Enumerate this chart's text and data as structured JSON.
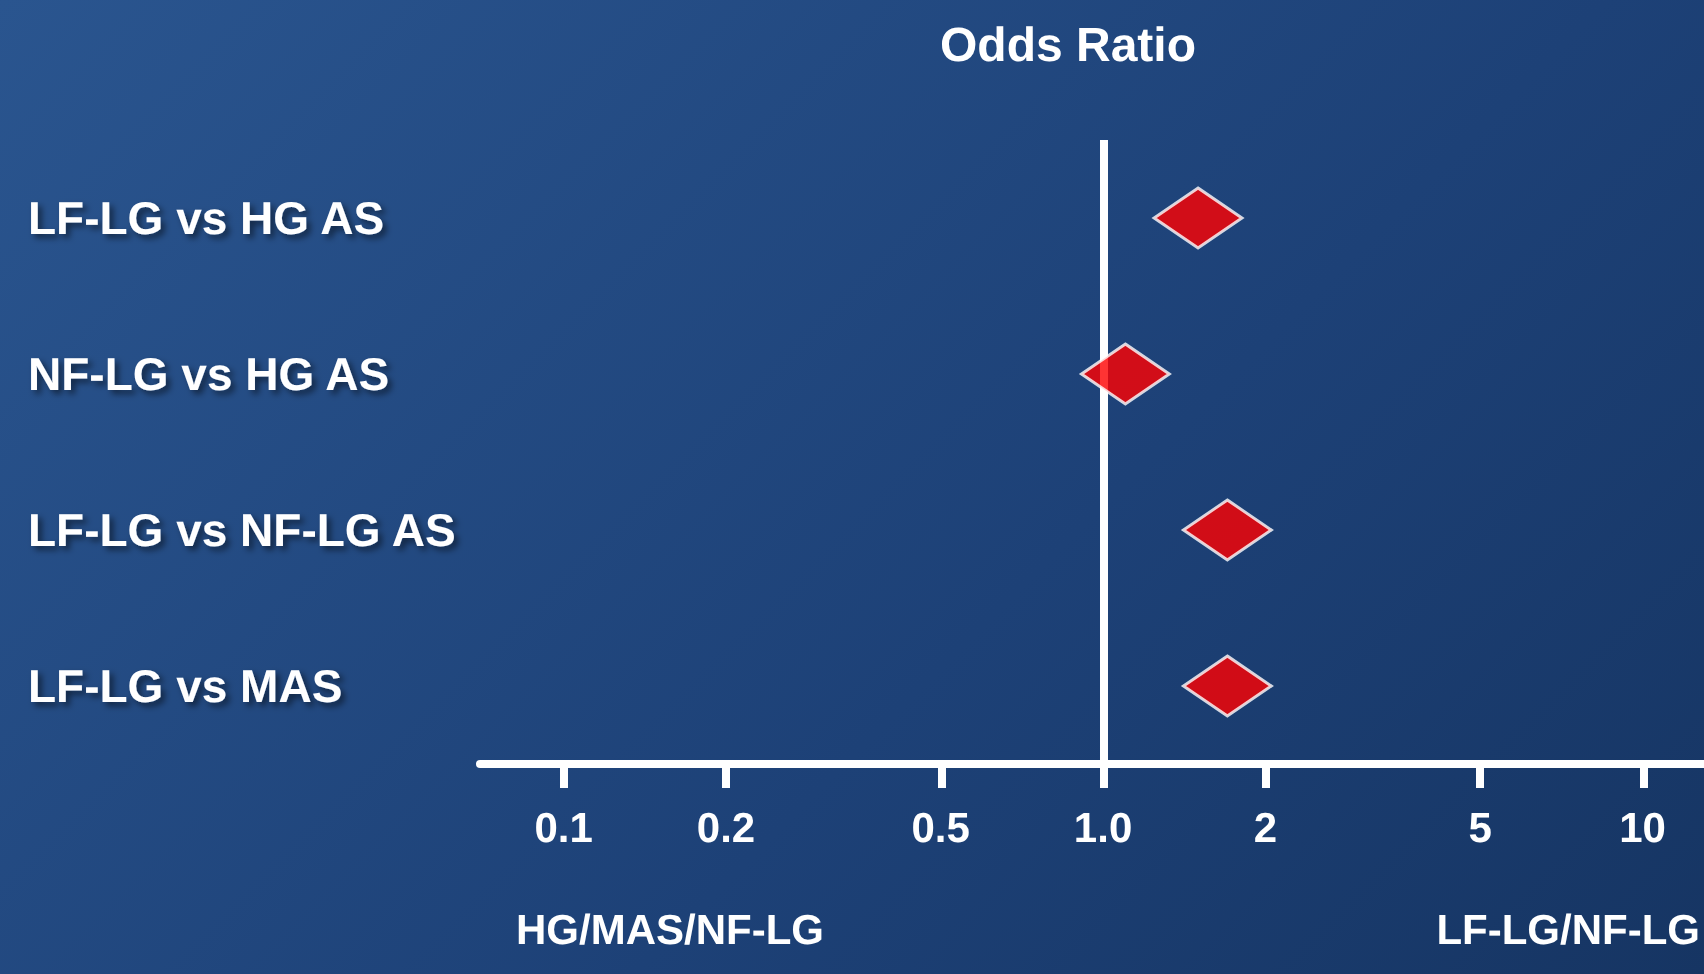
{
  "chart_data": {
    "type": "scatter",
    "orientation": "horizontal",
    "title": "Odds Ratio",
    "categories": [
      "LF-LG vs HG AS",
      "NF-LG vs HG AS",
      "LF-LG vs NF-LG AS",
      "LF-LG vs MAS"
    ],
    "series": [
      {
        "color": "#ff0000",
        "values": [
          1.5,
          1.1,
          1.7,
          1.7
        ]
      }
    ],
    "marker": "diamond",
    "log": "x",
    "xlim": [
      0.07,
      13
    ],
    "xticks": [
      0.1,
      0.2,
      0.5,
      {
        "value": 1,
        "label": "1.0"
      },
      2,
      5,
      10
    ],
    "ref_lines": [
      {
        "axis": "x",
        "value": 1,
        "color": "#ffffff"
      }
    ],
    "annotations": [
      "HG/MAS/NF-LG",
      "LF-LG/NF-LG"
    ],
    "grid": false
  }
}
